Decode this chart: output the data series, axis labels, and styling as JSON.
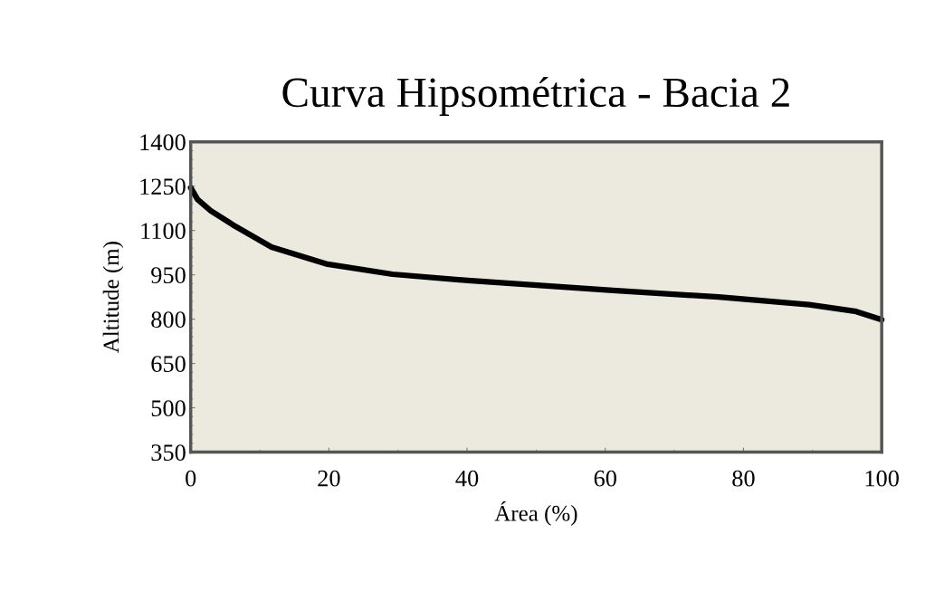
{
  "chart_data": {
    "type": "line",
    "title": "Curva Hipsométrica - Bacia 2",
    "xlabel": "Área (%)",
    "ylabel": "Altitude (m)",
    "x": [
      0,
      1,
      2.9,
      6.4,
      11.7,
      19.6,
      29.2,
      40.1,
      50.6,
      61.1,
      76.4,
      89.5,
      96.1,
      100
    ],
    "series": [
      {
        "color": "#000000",
        "values": [
          1245,
          1205,
          1167,
          1115,
          1044,
          987,
          952,
          931,
          914,
          897,
          875,
          849,
          827,
          798
        ]
      }
    ],
    "xlim": [
      0,
      100
    ],
    "xticks": [
      0,
      20,
      40,
      60,
      80,
      100
    ],
    "ylim": [
      350,
      1400
    ],
    "yticks": [
      350,
      500,
      650,
      800,
      950,
      1100,
      1250,
      1400
    ],
    "grid": false,
    "legend": false,
    "marker": "none",
    "line_style": "solid"
  }
}
